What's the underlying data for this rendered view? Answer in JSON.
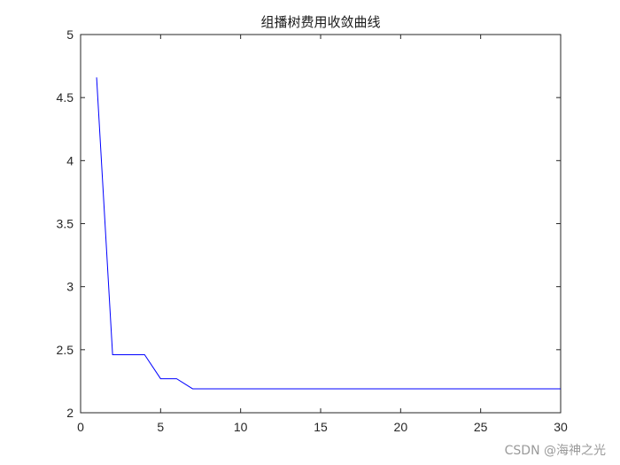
{
  "chart_data": {
    "type": "line",
    "title": "组播树费用收敛曲线",
    "xlabel": "",
    "ylabel": "",
    "xlim": [
      0,
      30
    ],
    "ylim": [
      2,
      5
    ],
    "x_ticks": [
      0,
      5,
      10,
      15,
      20,
      25,
      30
    ],
    "y_ticks": [
      2,
      2.5,
      3,
      3.5,
      4,
      4.5,
      5
    ],
    "grid": false,
    "series": [
      {
        "color": "#0000ff",
        "x": [
          1,
          2,
          3,
          4,
          5,
          6,
          7,
          8,
          9,
          10,
          11,
          12,
          13,
          14,
          15,
          16,
          17,
          18,
          19,
          20,
          21,
          22,
          23,
          24,
          25,
          26,
          27,
          28,
          29,
          30
        ],
        "y": [
          4.66,
          2.46,
          2.46,
          2.46,
          2.27,
          2.27,
          2.19,
          2.19,
          2.19,
          2.19,
          2.19,
          2.19,
          2.19,
          2.19,
          2.19,
          2.19,
          2.19,
          2.19,
          2.19,
          2.19,
          2.19,
          2.19,
          2.19,
          2.19,
          2.19,
          2.19,
          2.19,
          2.19,
          2.19,
          2.19
        ]
      }
    ]
  },
  "watermark": "CSDN @海神之光"
}
